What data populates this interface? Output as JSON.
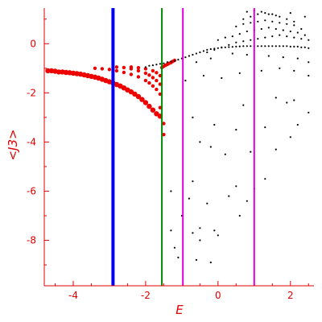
{
  "chart_data": {
    "type": "scatter",
    "title": "",
    "xlabel": "E",
    "ylabel": "<J3>",
    "xlim": [
      -4.8,
      2.65
    ],
    "ylim": [
      -9.85,
      1.45
    ],
    "grid": false,
    "legend": "none",
    "axis_color": "#e00000",
    "x_ticks": [
      -4,
      -2,
      0,
      2
    ],
    "x_tick_labels": [
      "-4",
      "-2",
      "0",
      "2"
    ],
    "y_ticks": [
      0,
      -2,
      -4,
      -6,
      -8
    ],
    "y_tick_labels": [
      "0",
      "-2",
      "-4",
      "-6",
      "-8"
    ],
    "vertical_lines": [
      {
        "x": -2.9,
        "color": "#0000ee"
      },
      {
        "x": -1.55,
        "color": "#008800"
      },
      {
        "x": -0.97,
        "color": "#dd00dd"
      },
      {
        "x": 1.0,
        "color": "#dd00dd"
      }
    ],
    "series": [
      {
        "color": "#ee0000",
        "values_x": [
          -4.7,
          -4.6,
          -4.5,
          -4.4,
          -4.3,
          -4.2,
          -4.1,
          -4.0,
          -3.9,
          -3.8,
          -3.7,
          -3.6,
          -3.5,
          -3.4,
          -3.3,
          -3.2,
          -3.1,
          -3.0,
          -2.9,
          -2.8,
          -2.7,
          -2.6,
          -2.5,
          -2.4,
          -2.3,
          -2.2,
          -2.1,
          -2.0,
          -1.9,
          -1.8,
          -1.7,
          -1.6,
          -3.4,
          -3.2,
          -3.0,
          -2.8,
          -2.6,
          -2.4,
          -2.2,
          -2.0,
          -1.9,
          -1.8,
          -1.7,
          -1.6,
          -2.8,
          -2.6,
          -2.4,
          -2.2,
          -2.0,
          -1.9,
          -1.8,
          -1.7,
          -1.6,
          -2.4,
          -2.2,
          -2.0,
          -1.8,
          -1.7,
          -1.6,
          -1.55,
          -1.5,
          -1.45,
          -1.4,
          -1.35,
          -1.3,
          -1.25,
          -1.2,
          -1.5,
          -1.5,
          -1.6
        ],
        "values_y": [
          -1.1,
          -1.1,
          -1.12,
          -1.15,
          -1.15,
          -1.17,
          -1.18,
          -1.2,
          -1.22,
          -1.24,
          -1.27,
          -1.3,
          -1.33,
          -1.36,
          -1.4,
          -1.45,
          -1.5,
          -1.55,
          -1.6,
          -1.66,
          -1.72,
          -1.8,
          -1.88,
          -1.96,
          -2.05,
          -2.15,
          -2.27,
          -2.4,
          -2.55,
          -2.7,
          -2.85,
          -2.95,
          -1.0,
          -1.02,
          -1.05,
          -1.1,
          -1.17,
          -1.25,
          -1.35,
          -1.5,
          -1.6,
          -1.72,
          -1.86,
          -2.05,
          -0.95,
          -0.97,
          -1.02,
          -1.1,
          -1.2,
          -1.28,
          -1.38,
          -1.5,
          -1.65,
          -0.95,
          -0.98,
          -1.02,
          -1.1,
          -1.18,
          -1.3,
          -0.97,
          -0.92,
          -0.88,
          -0.84,
          -0.8,
          -0.77,
          -0.72,
          -0.68,
          -3.25,
          -3.7,
          -2.6
        ]
      },
      {
        "color": "#000000",
        "values_x": [
          -2.0,
          -1.9,
          -1.8,
          -1.7,
          -1.6,
          -1.5,
          -1.4,
          -1.3,
          -1.2,
          -1.1,
          -1.0,
          -0.9,
          -0.8,
          -0.7,
          -0.6,
          -0.5,
          -0.4,
          -0.3,
          -0.2,
          -0.1,
          0.0,
          0.1,
          0.2,
          0.3,
          0.4,
          0.5,
          0.6,
          0.7,
          0.8,
          0.9,
          1.0,
          1.1,
          1.2,
          1.3,
          1.4,
          1.5,
          1.6,
          1.7,
          1.8,
          1.9,
          2.0,
          2.1,
          2.2,
          2.3,
          2.4,
          2.5,
          -0.3,
          -0.1,
          0.1,
          0.3,
          0.5,
          0.7,
          0.9,
          1.1,
          1.3,
          1.5,
          1.7,
          1.9,
          2.1,
          2.3,
          2.5,
          0.0,
          0.2,
          0.4,
          0.6,
          0.8,
          1.0,
          1.2,
          1.4,
          1.6,
          1.8,
          2.0,
          2.2,
          2.4,
          0.5,
          0.7,
          0.9,
          1.1,
          1.3,
          1.5,
          1.7,
          1.9,
          2.1,
          2.3,
          0.7,
          0.9,
          1.1,
          1.3,
          1.5,
          1.7,
          1.9,
          2.1,
          0.8,
          1.0,
          1.2,
          1.4,
          1.6,
          2.0,
          2.4,
          -0.6,
          -0.2,
          0.4,
          0.8,
          1.4,
          1.8,
          2.2,
          2.5,
          -0.9,
          -0.4,
          0.1,
          0.6,
          1.2,
          1.7,
          2.1,
          2.5,
          0.7,
          1.6,
          1.9,
          2.1,
          2.5,
          -0.7,
          -0.1,
          0.5,
          1.3,
          2.2,
          -0.5,
          -0.2,
          0.2,
          0.9,
          1.6,
          2.0,
          -0.7,
          0.5,
          1.0,
          1.3,
          -1.3,
          -0.8,
          -0.3,
          0.3,
          0.8,
          -1.0,
          -0.5,
          0.0,
          0.6,
          -1.3,
          -0.7,
          -0.1,
          -1.2,
          -0.5,
          -1.1,
          -0.6,
          -0.2
        ],
        "values_y": [
          -0.95,
          -0.9,
          -0.88,
          -0.85,
          -0.82,
          -0.8,
          -0.75,
          -0.72,
          -0.7,
          -0.65,
          -0.6,
          -0.55,
          -0.5,
          -0.45,
          -0.4,
          -0.35,
          -0.3,
          -0.25,
          -0.22,
          -0.2,
          -0.18,
          -0.16,
          -0.15,
          -0.14,
          -0.13,
          -0.12,
          -0.11,
          -0.1,
          -0.1,
          -0.1,
          -0.1,
          -0.1,
          -0.1,
          -0.1,
          -0.1,
          -0.1,
          -0.1,
          -0.1,
          -0.1,
          -0.1,
          -0.12,
          -0.12,
          -0.12,
          -0.15,
          -0.15,
          -0.18,
          -0.35,
          -0.25,
          -0.15,
          -0.05,
          0.05,
          0.1,
          0.15,
          0.2,
          0.25,
          0.3,
          0.35,
          0.3,
          0.25,
          0.2,
          0.15,
          0.15,
          0.25,
          0.3,
          0.4,
          0.5,
          0.55,
          0.6,
          0.65,
          0.6,
          0.55,
          0.5,
          0.45,
          0.35,
          0.7,
          0.8,
          0.85,
          0.9,
          0.95,
          0.9,
          0.85,
          0.8,
          0.75,
          0.6,
          1.0,
          1.1,
          1.2,
          1.25,
          1.2,
          1.1,
          1.0,
          0.9,
          1.3,
          1.35,
          1.3,
          1.2,
          1.15,
          1.25,
          1.1,
          -0.75,
          -0.6,
          -0.4,
          -0.45,
          -0.5,
          -0.55,
          -0.6,
          -0.75,
          -1.5,
          -1.3,
          -1.4,
          -1.2,
          -1.1,
          -1.0,
          -1.1,
          -1.3,
          -2.5,
          -2.2,
          -2.4,
          -2.3,
          -2.8,
          -3.0,
          -3.3,
          -3.5,
          -3.4,
          -3.3,
          -4.0,
          -4.2,
          -4.5,
          -4.4,
          -4.3,
          -3.8,
          -5.6,
          -5.8,
          -5.9,
          -5.5,
          -6.0,
          -6.3,
          -6.5,
          -6.2,
          -6.4,
          -7.0,
          -7.5,
          -7.8,
          -7.0,
          -7.6,
          -7.7,
          -7.6,
          -8.3,
          -8.0,
          -8.7,
          -8.8,
          -8.9
        ]
      }
    ]
  }
}
